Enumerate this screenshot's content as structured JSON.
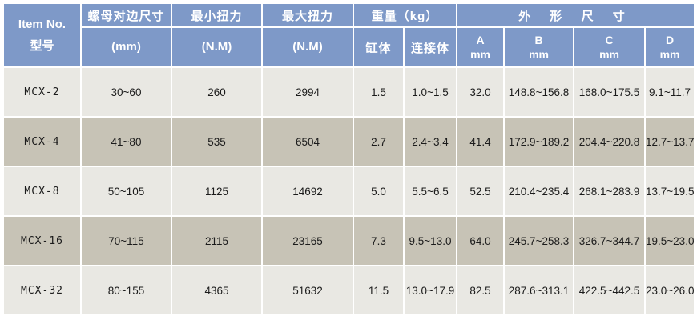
{
  "colors": {
    "header_bg": "#7e99c8",
    "header_text": "#ffffff",
    "row_light_bg": "#e9e8e3",
    "row_dark_bg": "#c7c3b6",
    "cell_text": "#1b1b1b",
    "grid": "#ffffff"
  },
  "table": {
    "header": {
      "item_no_line1": "Item No.",
      "item_no_line2": "型号",
      "nut_size_title": "螺母对边尺寸",
      "nut_size_unit": "(mm)",
      "min_torque_title": "最小扭力",
      "min_torque_unit": "(N.M)",
      "max_torque_title": "最大扭力",
      "max_torque_unit": "(N.M)",
      "weight_title": "重量（kg）",
      "weight_sub1": "缸体",
      "weight_sub2": "连接体",
      "dims_title": "外 形 尺 寸",
      "dim_a_line1": "A",
      "dim_a_line2": "mm",
      "dim_b_line1": "B",
      "dim_b_line2": "mm",
      "dim_c_line1": "C",
      "dim_c_line2": "mm",
      "dim_d_line1": "D",
      "dim_d_line2": "mm"
    },
    "rows": [
      [
        "MCX-2",
        "30~60",
        "260",
        "2994",
        "1.5",
        "1.0~1.5",
        "32.0",
        "148.8~156.8",
        "168.0~175.5",
        "9.1~11.7"
      ],
      [
        "MCX-4",
        "41~80",
        "535",
        "6504",
        "2.7",
        "2.4~3.4",
        "41.4",
        "172.9~189.2",
        "204.4~220.8",
        "12.7~13.7"
      ],
      [
        "MCX-8",
        "50~105",
        "1125",
        "14692",
        "5.0",
        "5.5~6.5",
        "52.5",
        "210.4~235.4",
        "268.1~283.9",
        "13.7~19.5"
      ],
      [
        "MCX-16",
        "70~115",
        "2115",
        "23165",
        "7.3",
        "9.5~13.0",
        "64.0",
        "245.7~258.3",
        "326.7~344.7",
        "19.5~23.0"
      ],
      [
        "MCX-32",
        "80~155",
        "4365",
        "51632",
        "11.5",
        "13.0~17.9",
        "82.5",
        "287.6~313.1",
        "422.5~442.5",
        "23.0~26.0"
      ]
    ]
  }
}
